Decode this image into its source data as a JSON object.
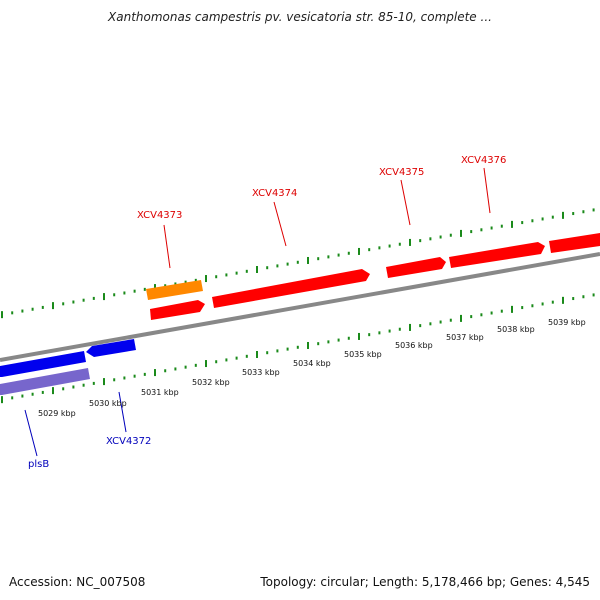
{
  "title": "Xanthomonas campestris pv. vesicatoria str. 85-10, complete ...",
  "footer": {
    "accession": "Accession: NC_007508",
    "summary": "Topology: circular; Length: 5,178,466 bp; Genes: 4,545"
  },
  "colors": {
    "forward_gene": "#ff0000",
    "reverse_gene": "#0000ee",
    "reverse_gene_alt": "#7766cc",
    "forward_feature_alt": "#ff8800",
    "backbone": "#888888",
    "ticks": "#1a8a1a",
    "forward_label": "#dd0000",
    "reverse_label": "#0000bb"
  },
  "genome_map": {
    "scale_labels": [
      "5029 kbp",
      "5030 kbp",
      "5031 kbp",
      "5032 kbp",
      "5033 kbp",
      "5034 kbp",
      "5035 kbp",
      "5036 kbp",
      "5037 kbp",
      "5038 kbp",
      "5039 kbp"
    ],
    "forward_gene_labels": [
      "XCV4373",
      "XCV4374",
      "XCV4375",
      "XCV4376"
    ],
    "reverse_gene_labels": [
      "XCV4372",
      "plsB"
    ]
  }
}
